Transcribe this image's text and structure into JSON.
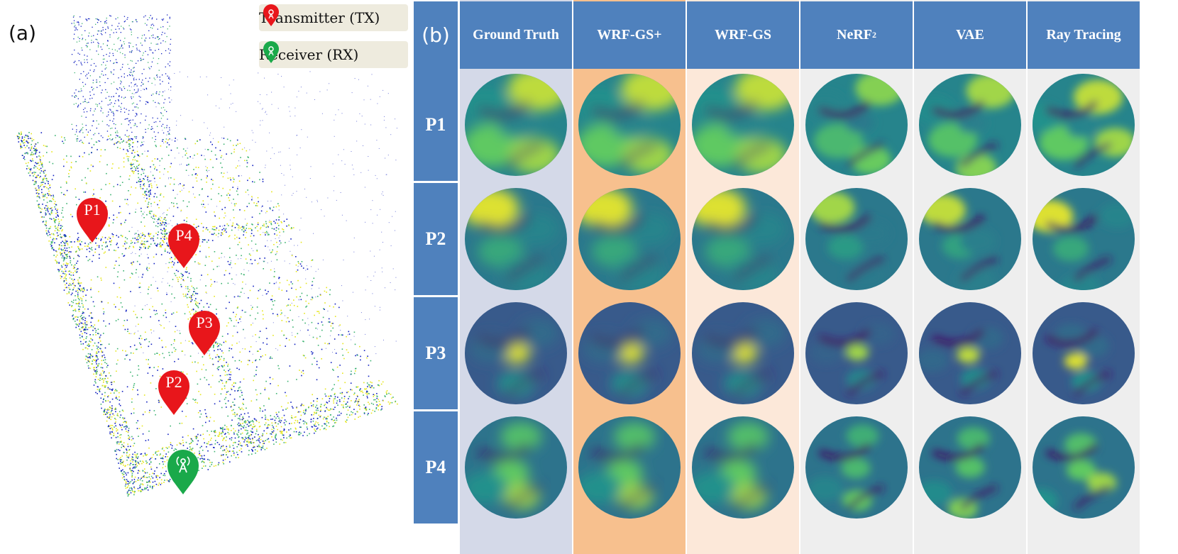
{
  "panel_a": {
    "label": "(a)",
    "legend": [
      {
        "icon": "transmitter-pin-icon",
        "text": "Transmitter (TX)",
        "color": "#e8161b"
      },
      {
        "icon": "receiver-pin-icon",
        "text": "Receiver (RX)",
        "color": "#1aa94a"
      }
    ],
    "markers": [
      "P1",
      "P4",
      "P3",
      "P2"
    ],
    "colors": {
      "tx": "#e8161b",
      "rx": "#1aa94a",
      "cloud_yellow": "#e6e61a",
      "cloud_green": "#3cb371",
      "cloud_blue": "#1020c0"
    }
  },
  "panel_b": {
    "label": "(b)",
    "columns": [
      {
        "name": "Ground Truth",
        "bg": "#d4d9e8"
      },
      {
        "name": "WRF-GS+",
        "bg": "#f7c08e"
      },
      {
        "name": "WRF-GS",
        "bg": "#fce8d9"
      },
      {
        "name": "NeRF",
        "sup": "2",
        "bg": "#eeeeee"
      },
      {
        "name": "VAE",
        "bg": "#eeeeee"
      },
      {
        "name": "Ray Tracing",
        "bg": "#eeeeee"
      }
    ],
    "rows": [
      "P1",
      "P2",
      "P3",
      "P4"
    ],
    "header_color": "#4f81bd"
  }
}
